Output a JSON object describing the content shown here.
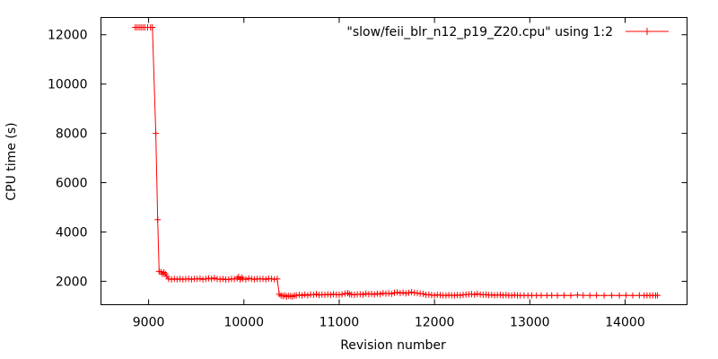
{
  "chart_data": {
    "type": "line",
    "title": "",
    "xlabel": "Revision number",
    "ylabel": "CPU time (s)",
    "xlim": [
      8500,
      14650
    ],
    "ylim": [
      1050,
      12700
    ],
    "xticks": [
      9000,
      10000,
      11000,
      12000,
      13000,
      14000
    ],
    "yticks": [
      2000,
      4000,
      6000,
      8000,
      10000,
      12000
    ],
    "grid": false,
    "legend_position": "top-right",
    "colors": {
      "series": "#ff0000",
      "axes": "#000000"
    },
    "series": [
      {
        "name": "\"slow/feii_blr_n12_p19_Z20.cpu\" using 1:2",
        "marker": "plus",
        "points": [
          [
            8860,
            12300
          ],
          [
            8880,
            12300
          ],
          [
            8900,
            12300
          ],
          [
            8920,
            12300
          ],
          [
            8940,
            12300
          ],
          [
            8960,
            12300
          ],
          [
            8990,
            12300
          ],
          [
            9020,
            12300
          ],
          [
            9040,
            12300
          ],
          [
            9075,
            8000
          ],
          [
            9095,
            4500
          ],
          [
            9110,
            2400
          ],
          [
            9130,
            2380
          ],
          [
            9145,
            2300
          ],
          [
            9160,
            2360
          ],
          [
            9175,
            2300
          ],
          [
            9190,
            2200
          ],
          [
            9210,
            2100
          ],
          [
            9240,
            2080
          ],
          [
            9270,
            2100
          ],
          [
            9300,
            2080
          ],
          [
            9330,
            2100
          ],
          [
            9360,
            2080
          ],
          [
            9390,
            2090
          ],
          [
            9420,
            2100
          ],
          [
            9450,
            2080
          ],
          [
            9480,
            2100
          ],
          [
            9510,
            2090
          ],
          [
            9540,
            2110
          ],
          [
            9570,
            2080
          ],
          [
            9600,
            2100
          ],
          [
            9630,
            2120
          ],
          [
            9660,
            2100
          ],
          [
            9690,
            2130
          ],
          [
            9720,
            2090
          ],
          [
            9750,
            2080
          ],
          [
            9780,
            2100
          ],
          [
            9810,
            2070
          ],
          [
            9840,
            2080
          ],
          [
            9870,
            2100
          ],
          [
            9900,
            2090
          ],
          [
            9930,
            2120
          ],
          [
            9945,
            2180
          ],
          [
            9960,
            2080
          ],
          [
            9975,
            2150
          ],
          [
            9990,
            2100
          ],
          [
            10020,
            2080
          ],
          [
            10050,
            2120
          ],
          [
            10080,
            2100
          ],
          [
            10110,
            2080
          ],
          [
            10140,
            2100
          ],
          [
            10170,
            2090
          ],
          [
            10200,
            2100
          ],
          [
            10230,
            2080
          ],
          [
            10260,
            2110
          ],
          [
            10290,
            2100
          ],
          [
            10320,
            2080
          ],
          [
            10350,
            2100
          ],
          [
            10370,
            1480
          ],
          [
            10390,
            1420
          ],
          [
            10410,
            1400
          ],
          [
            10430,
            1430
          ],
          [
            10450,
            1380
          ],
          [
            10470,
            1410
          ],
          [
            10490,
            1400
          ],
          [
            10510,
            1380
          ],
          [
            10530,
            1420
          ],
          [
            10550,
            1430
          ],
          [
            10580,
            1450
          ],
          [
            10610,
            1420
          ],
          [
            10640,
            1460
          ],
          [
            10670,
            1430
          ],
          [
            10700,
            1460
          ],
          [
            10730,
            1450
          ],
          [
            10760,
            1480
          ],
          [
            10790,
            1440
          ],
          [
            10820,
            1460
          ],
          [
            10850,
            1450
          ],
          [
            10880,
            1470
          ],
          [
            10910,
            1450
          ],
          [
            10940,
            1480
          ],
          [
            10970,
            1460
          ],
          [
            11000,
            1450
          ],
          [
            11030,
            1470
          ],
          [
            11060,
            1500
          ],
          [
            11090,
            1520
          ],
          [
            11110,
            1480
          ],
          [
            11130,
            1460
          ],
          [
            11160,
            1450
          ],
          [
            11190,
            1470
          ],
          [
            11220,
            1480
          ],
          [
            11250,
            1460
          ],
          [
            11280,
            1500
          ],
          [
            11310,
            1480
          ],
          [
            11340,
            1490
          ],
          [
            11370,
            1470
          ],
          [
            11400,
            1500
          ],
          [
            11430,
            1480
          ],
          [
            11460,
            1520
          ],
          [
            11490,
            1500
          ],
          [
            11520,
            1510
          ],
          [
            11550,
            1490
          ],
          [
            11580,
            1530
          ],
          [
            11610,
            1550
          ],
          [
            11640,
            1520
          ],
          [
            11670,
            1540
          ],
          [
            11700,
            1510
          ],
          [
            11730,
            1530
          ],
          [
            11760,
            1560
          ],
          [
            11790,
            1530
          ],
          [
            11820,
            1520
          ],
          [
            11850,
            1500
          ],
          [
            11880,
            1490
          ],
          [
            11910,
            1450
          ],
          [
            11940,
            1460
          ],
          [
            11970,
            1440
          ],
          [
            12000,
            1430
          ],
          [
            12030,
            1450
          ],
          [
            12060,
            1440
          ],
          [
            12090,
            1430
          ],
          [
            12120,
            1420
          ],
          [
            12150,
            1440
          ],
          [
            12180,
            1430
          ],
          [
            12210,
            1420
          ],
          [
            12240,
            1440
          ],
          [
            12270,
            1430
          ],
          [
            12300,
            1450
          ],
          [
            12330,
            1460
          ],
          [
            12360,
            1470
          ],
          [
            12390,
            1480
          ],
          [
            12420,
            1460
          ],
          [
            12450,
            1490
          ],
          [
            12480,
            1470
          ],
          [
            12510,
            1450
          ],
          [
            12540,
            1460
          ],
          [
            12570,
            1440
          ],
          [
            12600,
            1450
          ],
          [
            12630,
            1430
          ],
          [
            12660,
            1440
          ],
          [
            12690,
            1450
          ],
          [
            12720,
            1430
          ],
          [
            12750,
            1440
          ],
          [
            12780,
            1430
          ],
          [
            12810,
            1420
          ],
          [
            12840,
            1440
          ],
          [
            12870,
            1430
          ],
          [
            12900,
            1420
          ],
          [
            12940,
            1430
          ],
          [
            12980,
            1420
          ],
          [
            13020,
            1430
          ],
          [
            13070,
            1420
          ],
          [
            13120,
            1430
          ],
          [
            13180,
            1420
          ],
          [
            13230,
            1430
          ],
          [
            13290,
            1420
          ],
          [
            13360,
            1430
          ],
          [
            13430,
            1420
          ],
          [
            13500,
            1440
          ],
          [
            13560,
            1430
          ],
          [
            13630,
            1420
          ],
          [
            13700,
            1430
          ],
          [
            13780,
            1420
          ],
          [
            13860,
            1430
          ],
          [
            13940,
            1420
          ],
          [
            14010,
            1430
          ],
          [
            14080,
            1420
          ],
          [
            14150,
            1430
          ],
          [
            14200,
            1420
          ],
          [
            14230,
            1430
          ],
          [
            14260,
            1420
          ],
          [
            14290,
            1430
          ],
          [
            14320,
            1420
          ],
          [
            14340,
            1430
          ]
        ]
      }
    ]
  }
}
